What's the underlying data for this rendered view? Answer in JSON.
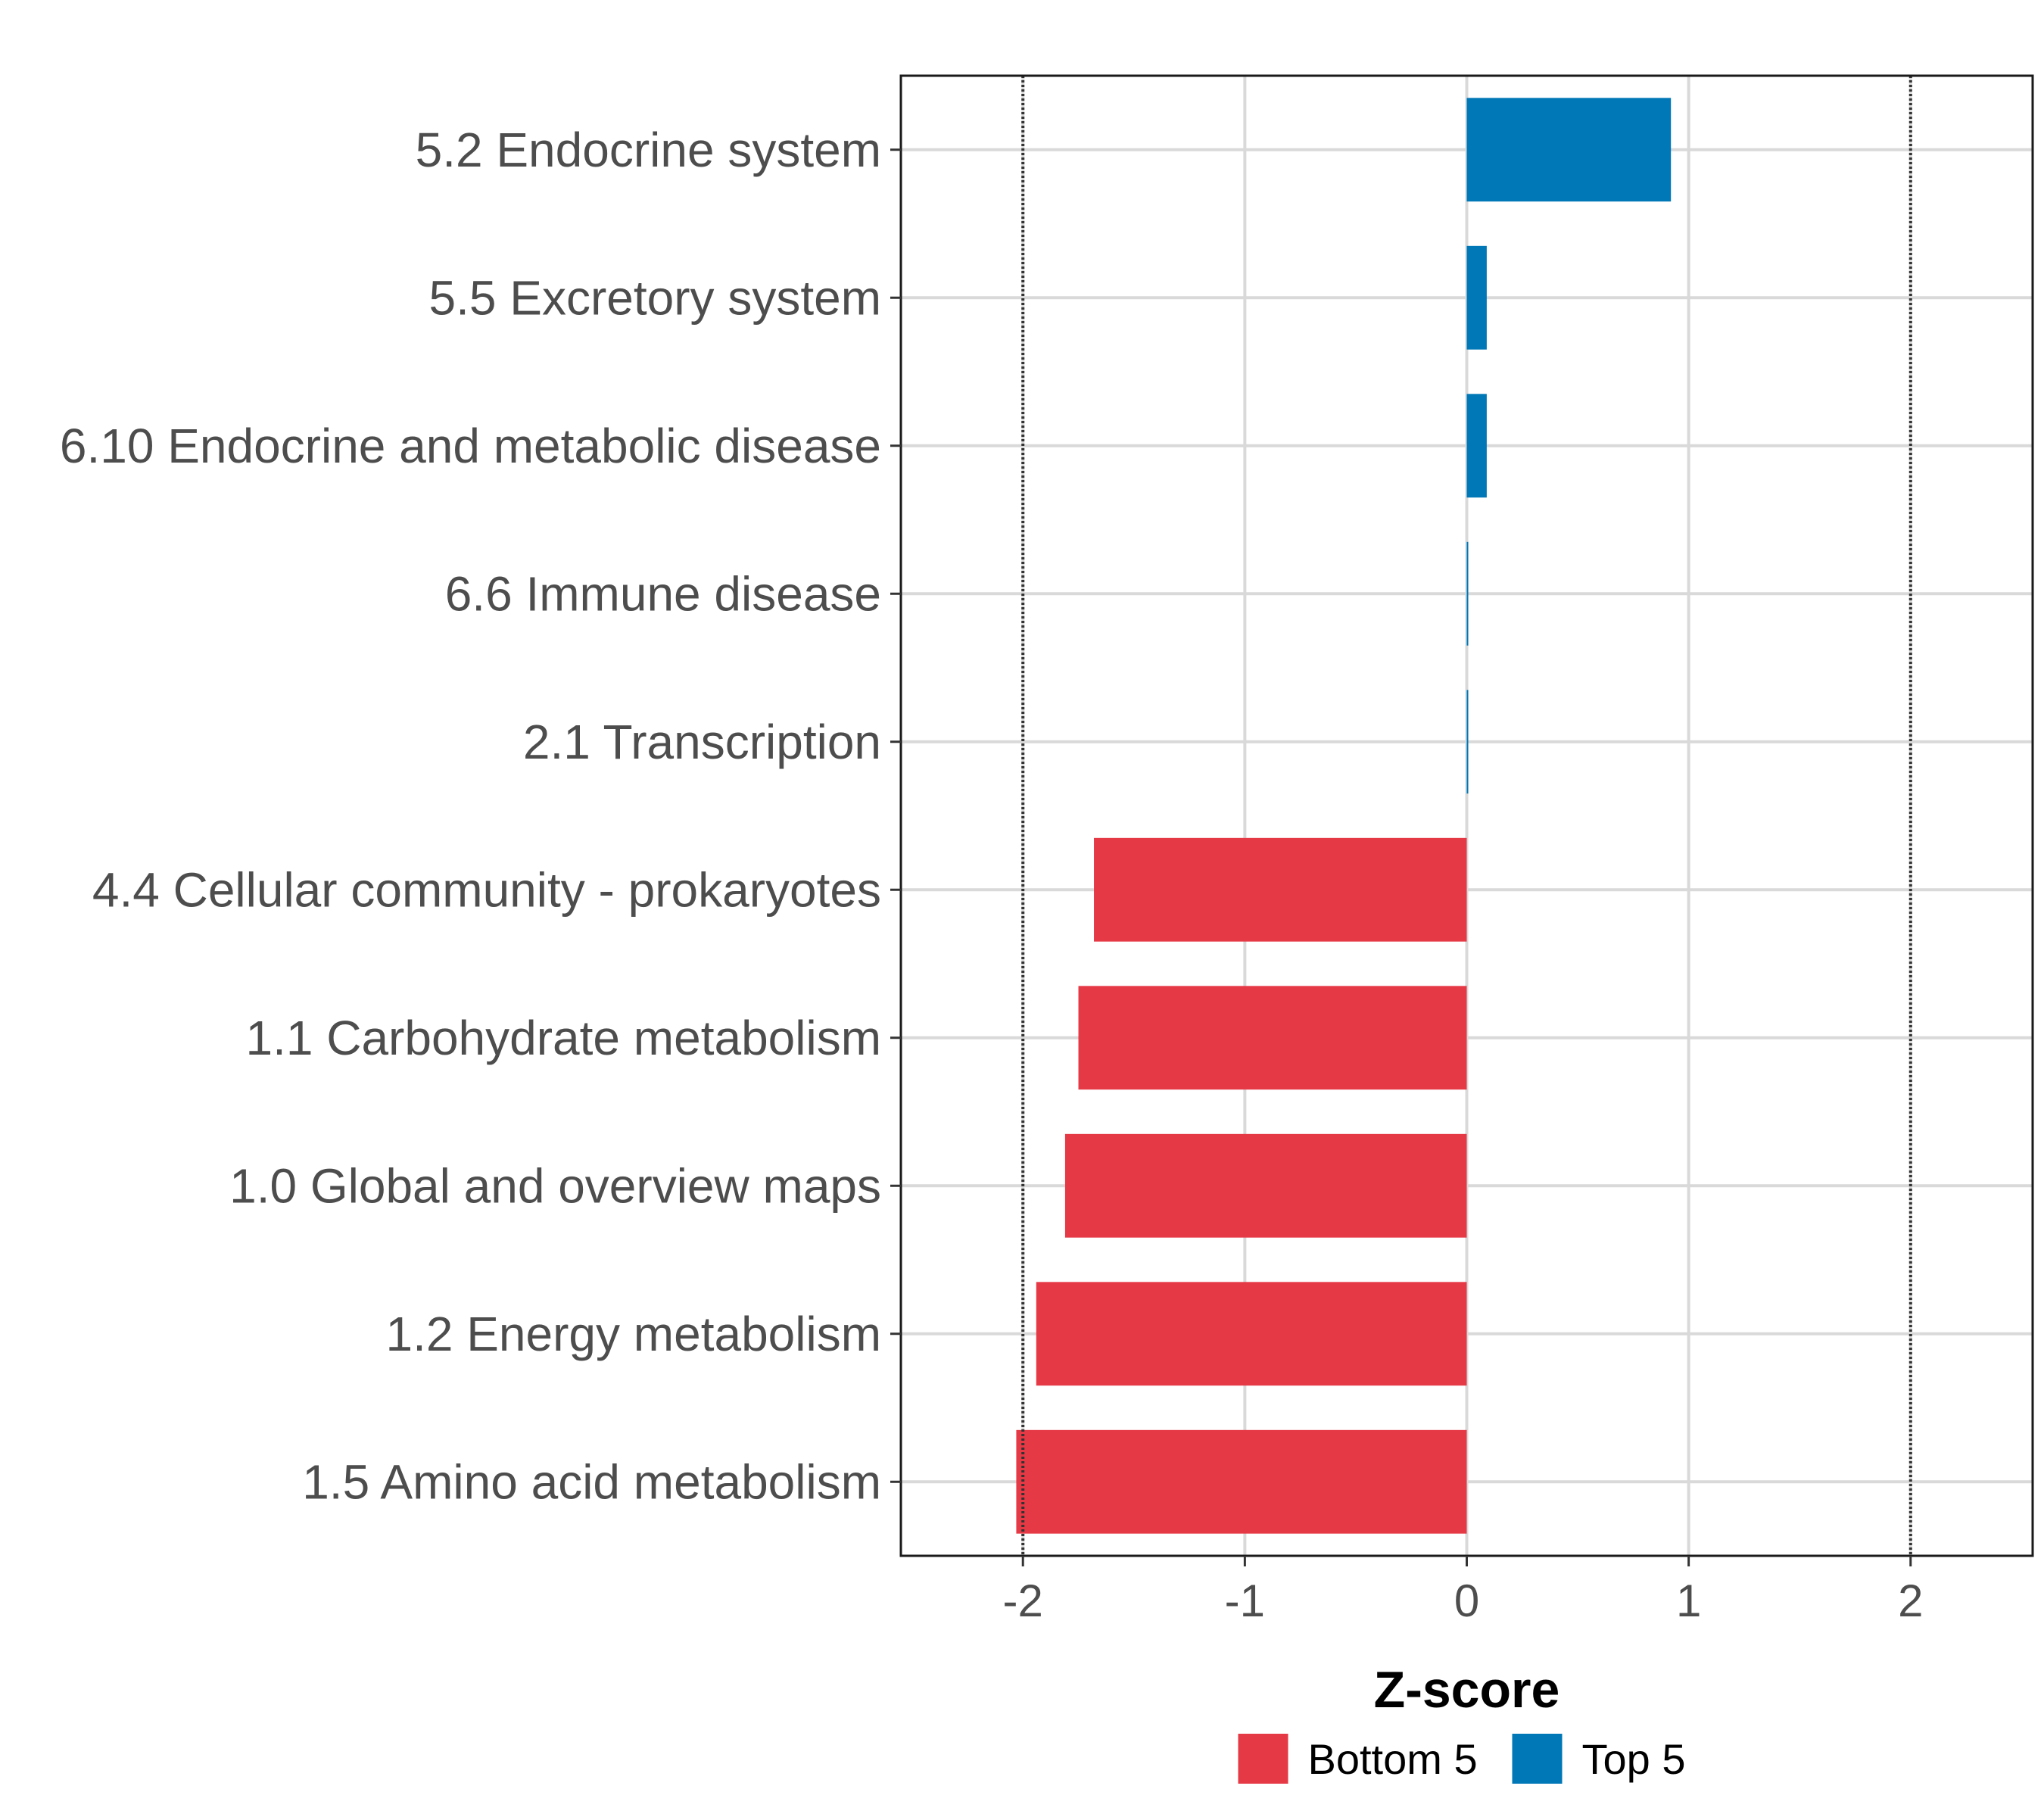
{
  "chart_data": {
    "type": "bar",
    "orientation": "horizontal",
    "title": "",
    "xlabel": "Z-score",
    "ylabel": "",
    "xlim": [
      -2.55,
      2.55
    ],
    "xticks": [
      -2,
      -1,
      0,
      1,
      2
    ],
    "xtick_labels": [
      "-2",
      "-1",
      "0",
      "1",
      "2"
    ],
    "reference_lines": [
      -2,
      2
    ],
    "grid": true,
    "categories": [
      "5.2 Endocrine system",
      "5.5 Excretory system",
      "6.10 Endocrine and metabolic disease",
      "6.6 Immune disease",
      "2.1 Transcription",
      "4.4 Cellular community - prokaryotes",
      "1.1 Carbohydrate metabolism",
      "1.0 Global and overview maps",
      "1.2 Energy metabolism",
      "1.5 Amino acid metabolism"
    ],
    "values": [
      0.92,
      0.09,
      0.09,
      0.005,
      0.005,
      -1.68,
      -1.75,
      -1.81,
      -1.94,
      -2.03
    ],
    "groups": [
      "Top 5",
      "Top 5",
      "Top 5",
      "Top 5",
      "Top 5",
      "Bottom 5",
      "Bottom 5",
      "Bottom 5",
      "Bottom 5",
      "Bottom 5"
    ],
    "legend": {
      "position": "bottom",
      "entries": [
        {
          "name": "Bottom 5",
          "color": "#e63946"
        },
        {
          "name": "Top 5",
          "color": "#0077b6"
        }
      ]
    },
    "colors": {
      "Top 5": "#0077b6",
      "Bottom 5": "#e63946"
    }
  }
}
